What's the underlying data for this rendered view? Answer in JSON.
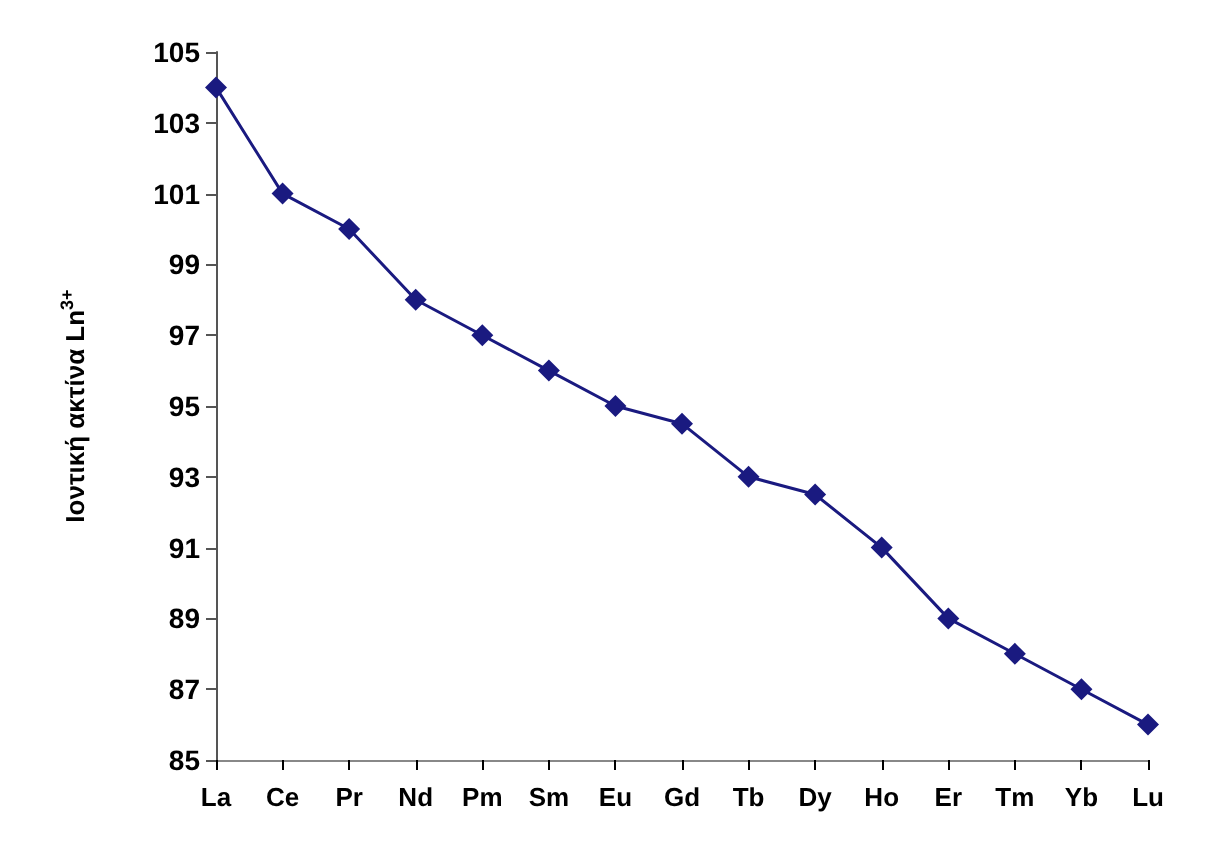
{
  "chart_data": {
    "type": "line",
    "ylabel": "Ιοντική ακτίνα Ln$^{3+}$",
    "categories": [
      "La",
      "Ce",
      "Pr",
      "Nd",
      "Pm",
      "Sm",
      "Eu",
      "Gd",
      "Tb",
      "Dy",
      "Ho",
      "Er",
      "Tm",
      "Yb",
      "Lu"
    ],
    "series": [
      {
        "color": "#1a1a80",
        "values": [
          104,
          101,
          100,
          98,
          97,
          96,
          95,
          94.5,
          93,
          92.5,
          91,
          89,
          88,
          87,
          86
        ]
      }
    ],
    "ylim": [
      85,
      105
    ],
    "yticks": [
      85,
      87,
      89,
      91,
      93,
      95,
      97,
      99,
      101,
      103,
      105
    ],
    "grid": false,
    "marker": "diamond",
    "line_style": "solid"
  }
}
